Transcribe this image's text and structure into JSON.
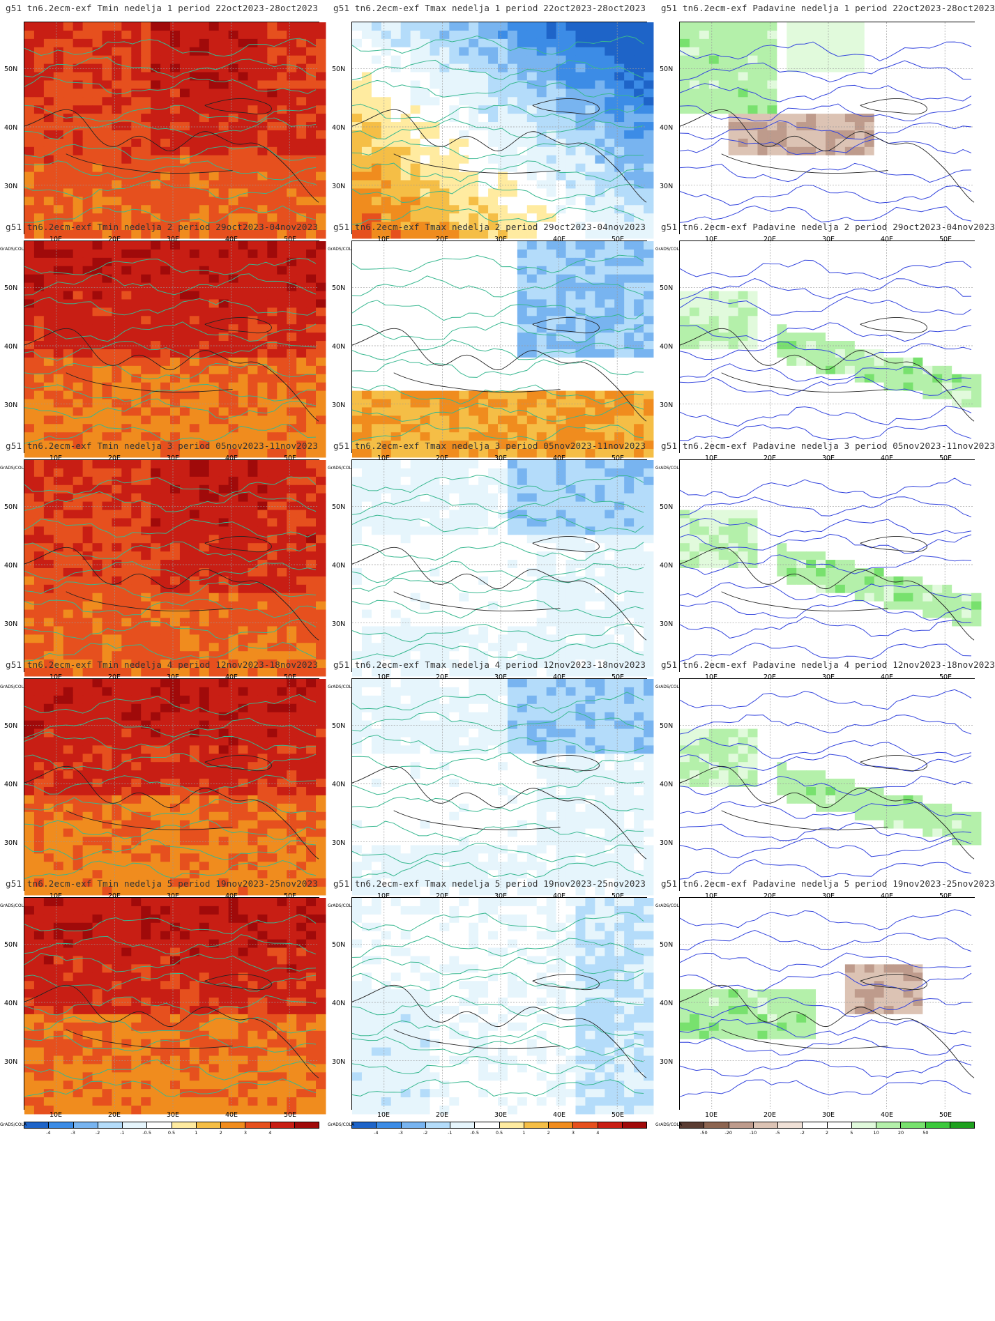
{
  "panels": [
    {
      "title": "g51 tn6.2ecm-exf Tmin nedelja 1 period 22oct2023-28oct2023",
      "scale": "temp",
      "pattern": "tmin_warm"
    },
    {
      "title": "g51 tn6.2ecm-exf Tmax nedelja 1 period 22oct2023-28oct2023",
      "scale": "temp",
      "pattern": "tmax_w1"
    },
    {
      "title": "g51 tn6.2ecm-exf Padavine nedelja 1 period 22oct2023-28oct2023",
      "scale": "precip",
      "pattern": "precip_dry"
    },
    {
      "title": "g51 tn6.2ecm-exf Tmin nedelja 2 period 29oct2023-04nov2023",
      "scale": "temp",
      "pattern": "tmin_hot"
    },
    {
      "title": "g51 tn6.2ecm-exf Tmax nedelja 2 period 29oct2023-04nov2023",
      "scale": "temp",
      "pattern": "tmax_w2"
    },
    {
      "title": "g51 tn6.2ecm-exf Padavine nedelja 2 period 29oct2023-04nov2023",
      "scale": "precip",
      "pattern": "precip_wet"
    },
    {
      "title": "g51 tn6.2ecm-exf Tmin nedelja 3 period 05nov2023-11nov2023",
      "scale": "temp",
      "pattern": "tmin_warm"
    },
    {
      "title": "g51 tn6.2ecm-exf Tmax nedelja 3 period 05nov2023-11nov2023",
      "scale": "temp",
      "pattern": "tmax_cool"
    },
    {
      "title": "g51 tn6.2ecm-exf Padavine nedelja 3 period 05nov2023-11nov2023",
      "scale": "precip",
      "pattern": "precip_wet"
    },
    {
      "title": "g51 tn6.2ecm-exf Tmin nedelja 4 period 12nov2023-18nov2023",
      "scale": "temp",
      "pattern": "tmin_hot"
    },
    {
      "title": "g51 tn6.2ecm-exf Tmax nedelja 4 period 12nov2023-18nov2023",
      "scale": "temp",
      "pattern": "tmax_cool"
    },
    {
      "title": "g51 tn6.2ecm-exf Padavine nedelja 4 period 12nov2023-18nov2023",
      "scale": "precip",
      "pattern": "precip_wet"
    },
    {
      "title": "g51 tn6.2ecm-exf Tmin nedelja 5 period 19nov2023-25nov2023",
      "scale": "temp",
      "pattern": "tmin_hot"
    },
    {
      "title": "g51 tn6.2ecm-exf Tmax nedelja 5 period 19nov2023-25nov2023",
      "scale": "temp",
      "pattern": "tmax_w5"
    },
    {
      "title": "g51 tn6.2ecm-exf Padavine nedelja 5 period 19nov2023-25nov2023",
      "scale": "precip",
      "pattern": "precip_mixed"
    }
  ],
  "axes": {
    "lat_labels": [
      "50N",
      "40N",
      "30N"
    ],
    "lon_labels": [
      "10E",
      "20E",
      "30E",
      "40E",
      "50E"
    ]
  },
  "colorbar_brand": "GrADS/COLA",
  "scales": {
    "temp": {
      "colors": [
        "#1e64c8",
        "#3c8ce6",
        "#78b4f0",
        "#b4dcfa",
        "#e6f5fc",
        "#ffffff",
        "#ffeba0",
        "#f5be46",
        "#f08c1e",
        "#e6501e",
        "#c81e14",
        "#a00a0a"
      ],
      "labels": [
        "-4",
        "-3",
        "-2",
        "-1",
        "-0.5",
        "0.5",
        "1",
        "2",
        "3",
        "4"
      ]
    },
    "precip": {
      "colors": [
        "#5a3c32",
        "#8c6450",
        "#be9b8c",
        "#dcc3b4",
        "#f0e1d7",
        "#ffffff",
        "#ffffff",
        "#e1fadc",
        "#b4f0aa",
        "#78e16e",
        "#3cc83c",
        "#1ea01e"
      ],
      "labels": [
        "-50",
        "-20",
        "-10",
        "-5",
        "-2",
        "2",
        "5",
        "10",
        "20",
        "50"
      ]
    }
  }
}
